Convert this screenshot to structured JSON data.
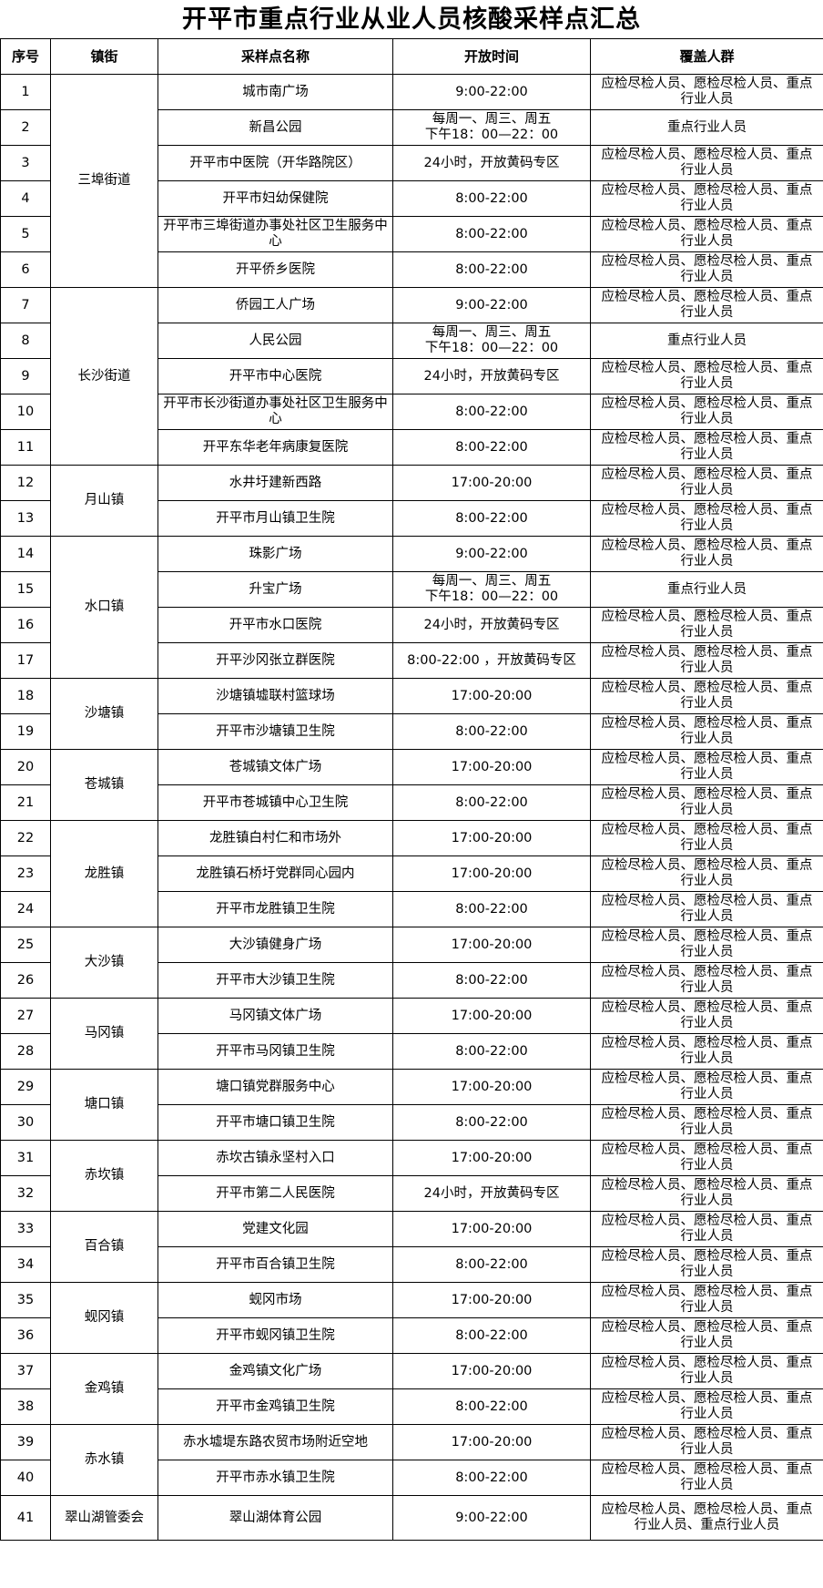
{
  "title": "开平市重点行业从业人员核酸采样点汇总",
  "headers": [
    "序号",
    "镇街",
    "采样点名称",
    "开放时间",
    "覆盖人群"
  ],
  "rows": [
    {
      "no": "1",
      "town": "三埠街道",
      "site": "城市南广场",
      "hours": [
        "9:00-22:00"
      ],
      "coverage": "应检尽检人员、愿检尽检人员、重点行业人员"
    },
    {
      "no": "2",
      "town": "三埠街道",
      "site": "新昌公园",
      "hours": [
        "每周一、周三、周五",
        "下午18：00—22：00"
      ],
      "coverage": "重点行业人员"
    },
    {
      "no": "3",
      "town": "三埠街道",
      "site": "开平市中医院（开华路院区）",
      "hours": [
        "24小时，开放黄码专区"
      ],
      "coverage": "应检尽检人员、愿检尽检人员、重点行业人员"
    },
    {
      "no": "4",
      "town": "三埠街道",
      "site": "开平市妇幼保健院",
      "hours": [
        "8:00-22:00"
      ],
      "coverage": "应检尽检人员、愿检尽检人员、重点行业人员"
    },
    {
      "no": "5",
      "town": "三埠街道",
      "site": "开平市三埠街道办事处社区卫生服务中心",
      "hours": [
        "8:00-22:00"
      ],
      "coverage": "应检尽检人员、愿检尽检人员、重点行业人员"
    },
    {
      "no": "6",
      "town": "三埠街道",
      "site": "开平侨乡医院",
      "hours": [
        "8:00-22:00"
      ],
      "coverage": "应检尽检人员、愿检尽检人员、重点行业人员"
    },
    {
      "no": "7",
      "town": "长沙街道",
      "site": "侨园工人广场",
      "hours": [
        "9:00-22:00"
      ],
      "coverage": "应检尽检人员、愿检尽检人员、重点行业人员"
    },
    {
      "no": "8",
      "town": "长沙街道",
      "site": "人民公园",
      "hours": [
        "每周一、周三、周五",
        "下午18：00—22：00"
      ],
      "coverage": "重点行业人员"
    },
    {
      "no": "9",
      "town": "长沙街道",
      "site": "开平市中心医院",
      "hours": [
        "24小时，开放黄码专区"
      ],
      "coverage": "应检尽检人员、愿检尽检人员、重点行业人员"
    },
    {
      "no": "10",
      "town": "长沙街道",
      "site": "开平市长沙街道办事处社区卫生服务中心",
      "hours": [
        "8:00-22:00"
      ],
      "coverage": "应检尽检人员、愿检尽检人员、重点行业人员"
    },
    {
      "no": "11",
      "town": "长沙街道",
      "site": "开平东华老年病康复医院",
      "hours": [
        "8:00-22:00"
      ],
      "coverage": "应检尽检人员、愿检尽检人员、重点行业人员"
    },
    {
      "no": "12",
      "town": "月山镇",
      "site": "水井圩建新西路",
      "hours": [
        "17:00-20:00"
      ],
      "coverage": "应检尽检人员、愿检尽检人员、重点行业人员"
    },
    {
      "no": "13",
      "town": "月山镇",
      "site": "开平市月山镇卫生院",
      "hours": [
        "8:00-22:00"
      ],
      "coverage": "应检尽检人员、愿检尽检人员、重点行业人员"
    },
    {
      "no": "14",
      "town": "水口镇",
      "site": "珠影广场",
      "hours": [
        "9:00-22:00"
      ],
      "coverage": "应检尽检人员、愿检尽检人员、重点行业人员"
    },
    {
      "no": "15",
      "town": "水口镇",
      "site": "升宝广场",
      "hours": [
        "每周一、周三、周五",
        "下午18：00—22：00"
      ],
      "coverage": "重点行业人员"
    },
    {
      "no": "16",
      "town": "水口镇",
      "site": "开平市水口医院",
      "hours": [
        "24小时，开放黄码专区"
      ],
      "coverage": "应检尽检人员、愿检尽检人员、重点行业人员"
    },
    {
      "no": "17",
      "town": "水口镇",
      "site": "开平沙冈张立群医院",
      "hours": [
        "8:00-22:00 ，开放黄码专区"
      ],
      "coverage": "应检尽检人员、愿检尽检人员、重点行业人员"
    },
    {
      "no": "18",
      "town": "沙塘镇",
      "site": "沙塘镇墟联村篮球场",
      "hours": [
        "17:00-20:00"
      ],
      "coverage": "应检尽检人员、愿检尽检人员、重点行业人员"
    },
    {
      "no": "19",
      "town": "沙塘镇",
      "site": "开平市沙塘镇卫生院",
      "hours": [
        "8:00-22:00"
      ],
      "coverage": "应检尽检人员、愿检尽检人员、重点行业人员"
    },
    {
      "no": "20",
      "town": "苍城镇",
      "site": "苍城镇文体广场",
      "hours": [
        "17:00-20:00"
      ],
      "coverage": "应检尽检人员、愿检尽检人员、重点行业人员"
    },
    {
      "no": "21",
      "town": "苍城镇",
      "site": "开平市苍城镇中心卫生院",
      "hours": [
        "8:00-22:00"
      ],
      "coverage": "应检尽检人员、愿检尽检人员、重点行业人员"
    },
    {
      "no": "22",
      "town": "龙胜镇",
      "site": "龙胜镇白村仁和市场外",
      "hours": [
        "17:00-20:00"
      ],
      "coverage": "应检尽检人员、愿检尽检人员、重点行业人员"
    },
    {
      "no": "23",
      "town": "龙胜镇",
      "site": "龙胜镇石桥圩党群同心园内",
      "hours": [
        "17:00-20:00"
      ],
      "coverage": "应检尽检人员、愿检尽检人员、重点行业人员"
    },
    {
      "no": "24",
      "town": "龙胜镇",
      "site": "开平市龙胜镇卫生院",
      "hours": [
        "8:00-22:00"
      ],
      "coverage": "应检尽检人员、愿检尽检人员、重点行业人员"
    },
    {
      "no": "25",
      "town": "大沙镇",
      "site": "大沙镇健身广场",
      "hours": [
        "17:00-20:00"
      ],
      "coverage": "应检尽检人员、愿检尽检人员、重点行业人员"
    },
    {
      "no": "26",
      "town": "大沙镇",
      "site": "开平市大沙镇卫生院",
      "hours": [
        "8:00-22:00"
      ],
      "coverage": "应检尽检人员、愿检尽检人员、重点行业人员"
    },
    {
      "no": "27",
      "town": "马冈镇",
      "site": "马冈镇文体广场",
      "hours": [
        "17:00-20:00"
      ],
      "coverage": "应检尽检人员、愿检尽检人员、重点行业人员"
    },
    {
      "no": "28",
      "town": "马冈镇",
      "site": "开平市马冈镇卫生院",
      "hours": [
        "8:00-22:00"
      ],
      "coverage": "应检尽检人员、愿检尽检人员、重点行业人员"
    },
    {
      "no": "29",
      "town": "塘口镇",
      "site": "塘口镇党群服务中心",
      "hours": [
        "17:00-20:00"
      ],
      "coverage": "应检尽检人员、愿检尽检人员、重点行业人员"
    },
    {
      "no": "30",
      "town": "塘口镇",
      "site": "开平市塘口镇卫生院",
      "hours": [
        "8:00-22:00"
      ],
      "coverage": "应检尽检人员、愿检尽检人员、重点行业人员"
    },
    {
      "no": "31",
      "town": "赤坎镇",
      "site": "赤坎古镇永坚村入口",
      "hours": [
        "17:00-20:00"
      ],
      "coverage": "应检尽检人员、愿检尽检人员、重点行业人员"
    },
    {
      "no": "32",
      "town": "赤坎镇",
      "site": "开平市第二人民医院",
      "hours": [
        "24小时，开放黄码专区"
      ],
      "coverage": "应检尽检人员、愿检尽检人员、重点行业人员"
    },
    {
      "no": "33",
      "town": "百合镇",
      "site": "党建文化园",
      "hours": [
        "17:00-20:00"
      ],
      "coverage": "应检尽检人员、愿检尽检人员、重点行业人员"
    },
    {
      "no": "34",
      "town": "百合镇",
      "site": "开平市百合镇卫生院",
      "hours": [
        "8:00-22:00"
      ],
      "coverage": "应检尽检人员、愿检尽检人员、重点行业人员"
    },
    {
      "no": "35",
      "town": "蚬冈镇",
      "site": "蚬冈市场",
      "hours": [
        "17:00-20:00"
      ],
      "coverage": "应检尽检人员、愿检尽检人员、重点行业人员"
    },
    {
      "no": "36",
      "town": "蚬冈镇",
      "site": "开平市蚬冈镇卫生院",
      "hours": [
        "8:00-22:00"
      ],
      "coverage": "应检尽检人员、愿检尽检人员、重点行业人员"
    },
    {
      "no": "37",
      "town": "金鸡镇",
      "site": "金鸡镇文化广场",
      "hours": [
        "17:00-20:00"
      ],
      "coverage": "应检尽检人员、愿检尽检人员、重点行业人员"
    },
    {
      "no": "38",
      "town": "金鸡镇",
      "site": "开平市金鸡镇卫生院",
      "hours": [
        "8:00-22:00"
      ],
      "coverage": "应检尽检人员、愿检尽检人员、重点行业人员"
    },
    {
      "no": "39",
      "town": "赤水镇",
      "site": "赤水墟堤东路农贸市场附近空地",
      "hours": [
        "17:00-20:00"
      ],
      "coverage": "应检尽检人员、愿检尽检人员、重点行业人员"
    },
    {
      "no": "40",
      "town": "赤水镇",
      "site": "开平市赤水镇卫生院",
      "hours": [
        "8:00-22:00"
      ],
      "coverage": "应检尽检人员、愿检尽检人员、重点行业人员"
    },
    {
      "no": "41",
      "town": "翠山湖管委会",
      "site": "翠山湖体育公园",
      "hours": [
        "9:00-22:00"
      ],
      "coverage": "应检尽检人员、愿检尽检人员、重点行业人员、重点行业人员"
    }
  ]
}
